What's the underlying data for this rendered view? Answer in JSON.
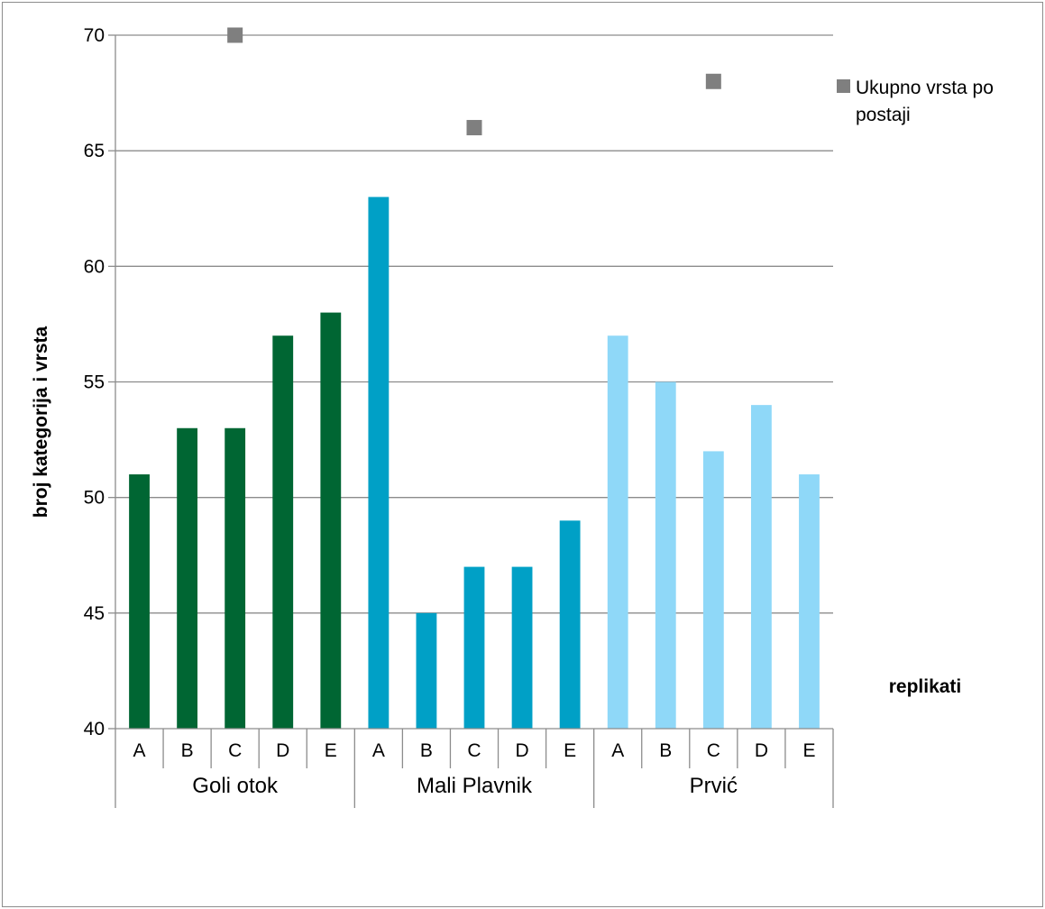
{
  "chart_data": {
    "type": "bar",
    "ylabel": "broj kategorija i vrsta",
    "xlabel": "replikati",
    "ylim": [
      40,
      70
    ],
    "yticks": [
      40,
      45,
      50,
      55,
      60,
      65,
      70
    ],
    "grid": true,
    "legend_position": "top-right",
    "groups": [
      {
        "name": "Goli otok",
        "color": "#006633",
        "categories": [
          "A",
          "B",
          "C",
          "D",
          "E"
        ],
        "values": [
          51,
          53,
          53,
          57,
          58
        ]
      },
      {
        "name": "Mali Plavnik",
        "color": "#00A0C6",
        "categories": [
          "A",
          "B",
          "C",
          "D",
          "E"
        ],
        "values": [
          63,
          45,
          47,
          47,
          49
        ]
      },
      {
        "name": "Prvić",
        "color": "#8FD8F8",
        "categories": [
          "A",
          "B",
          "C",
          "D",
          "E"
        ],
        "values": [
          57,
          55,
          52,
          54,
          51
        ]
      }
    ],
    "markers": {
      "name": "Ukupno vrsta po postaji",
      "legend_lines": [
        "Ukupno vrsta po",
        "postaji"
      ],
      "color": "#7F7F7F",
      "points": [
        {
          "group": "Goli otok",
          "category": "C",
          "value": 70
        },
        {
          "group": "Mali Plavnik",
          "category": "C",
          "value": 66
        },
        {
          "group": "Prvić",
          "category": "C",
          "value": 68
        }
      ]
    }
  }
}
